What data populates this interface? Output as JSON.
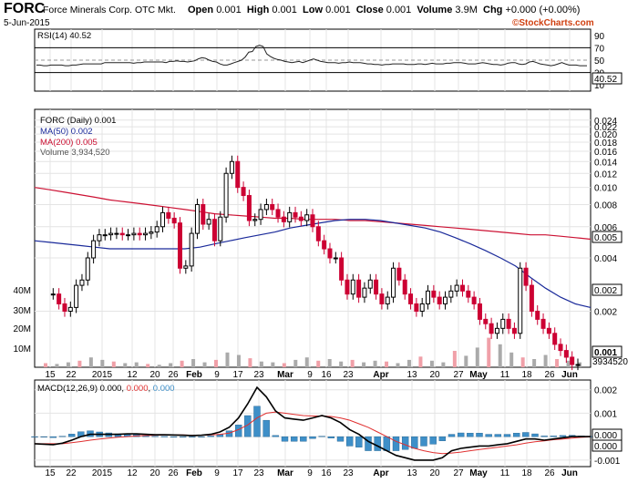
{
  "header": {
    "symbol": "FORC",
    "company": "Force Minerals Corp.  OTC Mkt.",
    "open_label": "Open",
    "open": "0.001",
    "high_label": "High",
    "high": "0.001",
    "low_label": "Low",
    "low": "0.001",
    "close_label": "Close",
    "close": "0.001",
    "volume_label": "Volume",
    "volume": "3.9M",
    "chg_label": "Chg",
    "chg": "+0.000 (+0.00%)",
    "date": "5-Jun-2015",
    "credit_prefix": "©",
    "credit_brand": "StockCharts.com"
  },
  "colors": {
    "up": "#000000",
    "down": "#cc0033",
    "ma50": "#1a2a9a",
    "ma200": "#cc1133",
    "macd": "#000000",
    "signal": "#e03030",
    "hist": "#3e8fc8",
    "volume_up": "#aaaaaa",
    "volume_down": "#f0a0a8"
  },
  "chart_data": [
    {
      "type": "line",
      "title": "RSI(14) 40.52",
      "y_ticks": [
        90,
        70,
        50,
        30,
        10
      ],
      "ylim": [
        0,
        100
      ],
      "reference_lines": [
        70,
        50,
        30
      ],
      "last_value": "40.52",
      "values": [
        42,
        42,
        41,
        41,
        42,
        42,
        42,
        42,
        41,
        41,
        42,
        42,
        43,
        44,
        44,
        44,
        44,
        44,
        44,
        46,
        46,
        46,
        46,
        46,
        46,
        46,
        46,
        45,
        46,
        46,
        47,
        47,
        47,
        47,
        47,
        47,
        46,
        48,
        48,
        49,
        48,
        48,
        47,
        48,
        49,
        52,
        54,
        53,
        50,
        48,
        47,
        44,
        42,
        42,
        44,
        46,
        48,
        50,
        55,
        63,
        64,
        72,
        74,
        72,
        60,
        56,
        53,
        51,
        50,
        48,
        47,
        46,
        47,
        48,
        46,
        48,
        50,
        52,
        50,
        48,
        47,
        46,
        46,
        46,
        45,
        46,
        46,
        47,
        46,
        46,
        46,
        45,
        44,
        44,
        43,
        43,
        42,
        43,
        43,
        44,
        44,
        44,
        44,
        43,
        43,
        43,
        44,
        44,
        43,
        44,
        45,
        44,
        44,
        44,
        45,
        45,
        46,
        46,
        46,
        45,
        44,
        44,
        44,
        45,
        46,
        45,
        44,
        43,
        43,
        42,
        43,
        45,
        46,
        46,
        44,
        43,
        44,
        47,
        48,
        46,
        44,
        43,
        42,
        41,
        42,
        44,
        46,
        44,
        42,
        42,
        42,
        41,
        41,
        41
      ]
    },
    {
      "type": "candlestick",
      "title": "FORC (Daily) 0.001",
      "legend": [
        "FORC (Daily) 0.001",
        "MA(50) 0.002",
        "MA(200) 0.005",
        "Volume 3,934,520"
      ],
      "y_scale": "log",
      "y_ticks": [
        0.024,
        0.022,
        0.02,
        0.018,
        0.016,
        0.014,
        0.012,
        0.01,
        0.008,
        0.006,
        0.004,
        0.002
      ],
      "y_ticks_labels": [
        "0.024",
        "0.022",
        "0.020",
        "0.018",
        "0.016",
        "0.014",
        "0.012",
        "0.010",
        "0.008",
        "0.006",
        "0.004",
        "0.002"
      ],
      "volume_ticks": [
        "40M",
        "30M",
        "20M",
        "10M"
      ],
      "last_labels": {
        "ma200": "0.005",
        "ma50": "0.002",
        "close": "0.001",
        "volume": "3934520"
      },
      "x_labels": [
        "15",
        "22",
        "2015",
        "12",
        "20",
        "26",
        "Feb",
        "9",
        "17",
        "23",
        "Mar",
        "9",
        "16",
        "23",
        "Apr",
        "13",
        "20",
        "27",
        "May",
        "11",
        "18",
        "26",
        "Jun"
      ],
      "series": [
        {
          "name": "MA(50) 0.002",
          "values": [
            0.005,
            0.0049,
            0.0048,
            0.0047,
            0.0046,
            0.0045,
            0.0045,
            0.0045,
            0.0045,
            0.0045,
            0.0045,
            0.0046,
            0.0048,
            0.005,
            0.0052,
            0.0054,
            0.0056,
            0.0059,
            0.0061,
            0.0063,
            0.0065,
            0.0066,
            0.0066,
            0.0065,
            0.0063,
            0.0061,
            0.0059,
            0.0056,
            0.0052,
            0.0048,
            0.0044,
            0.004,
            0.0036,
            0.0031,
            0.0027,
            0.0024,
            0.0022,
            0.0021
          ]
        },
        {
          "name": "MA(200) 0.005",
          "values": [
            0.01,
            0.0097,
            0.0094,
            0.0091,
            0.0088,
            0.0085,
            0.0083,
            0.0081,
            0.0079,
            0.0077,
            0.0075,
            0.0073,
            0.0071,
            0.007,
            0.0069,
            0.0068,
            0.0067,
            0.0067,
            0.0066,
            0.0066,
            0.0066,
            0.0065,
            0.0065,
            0.0064,
            0.0063,
            0.0062,
            0.0061,
            0.006,
            0.0059,
            0.0058,
            0.0057,
            0.0056,
            0.0055,
            0.0054,
            0.0054,
            0.0053,
            0.0052,
            0.0051
          ]
        }
      ]
    },
    {
      "type": "line",
      "title": "MACD(12,26,9) 0.000, 0.000, 0.000",
      "legend_prefix": "MACD(12,26,9)",
      "legend_values": [
        "0.000",
        "0.000",
        "0.000"
      ],
      "y_ticks": [
        "0.002",
        "0.001",
        "0.000",
        "-0.001"
      ],
      "ylim": [
        -0.0012,
        0.0023
      ],
      "last_labels": [
        "0.000",
        "0.000"
      ],
      "series": [
        {
          "name": "MACD",
          "values": [
            -0.0003,
            -0.00032,
            -0.00034,
            -0.00028,
            -0.00015,
            0.0,
            0.0001,
            0.0001,
            0.0001,
            0.0001,
            0.00012,
            0.00012,
            0.0001,
            8e-05,
            8e-05,
            7e-05,
            6e-05,
            5e-05,
            6e-05,
            0.0001,
            0.0002,
            0.0004,
            0.0008,
            0.0014,
            0.0021,
            0.0017,
            0.0011,
            0.0008,
            0.00075,
            0.0007,
            0.0008,
            0.0009,
            0.0008,
            0.0006,
            0.0003,
            0.0001,
            -0.0002,
            -0.0004,
            -0.0006,
            -0.0008,
            -0.0009,
            -0.001,
            -0.001,
            -0.001,
            -0.0009,
            -0.0006,
            -0.0005,
            -0.00045,
            -0.0004,
            -0.0004,
            -0.00035,
            -0.0003,
            -0.0002,
            -0.0001,
            -0.0001,
            -0.00015,
            -0.0001,
            -5e-05,
            0.0,
            0.0,
            0.0
          ]
        },
        {
          "name": "Signal",
          "values": [
            -0.0003,
            -0.0003,
            -0.0003,
            -0.0003,
            -0.00026,
            -0.00021,
            -0.00015,
            -0.0001,
            -6e-05,
            -2e-05,
            0.0,
            3e-05,
            5e-05,
            6e-05,
            7e-05,
            7e-05,
            7e-05,
            6e-05,
            6e-05,
            7e-05,
            0.0001,
            0.00015,
            0.0003,
            0.0005,
            0.0008,
            0.001,
            0.00105,
            0.001,
            0.00095,
            0.0009,
            0.00088,
            0.00088,
            0.00086,
            0.0008,
            0.0007,
            0.00055,
            0.0004,
            0.0002,
            0.0,
            -0.0002,
            -0.00035,
            -0.0005,
            -0.0006,
            -0.00068,
            -0.00072,
            -0.0007,
            -0.00066,
            -0.0006,
            -0.00055,
            -0.0005,
            -0.00045,
            -0.0004,
            -0.00035,
            -0.00028,
            -0.00022,
            -0.00018,
            -0.00013,
            -0.0001,
            -6e-05,
            -3e-05,
            -1e-05
          ]
        }
      ]
    }
  ]
}
